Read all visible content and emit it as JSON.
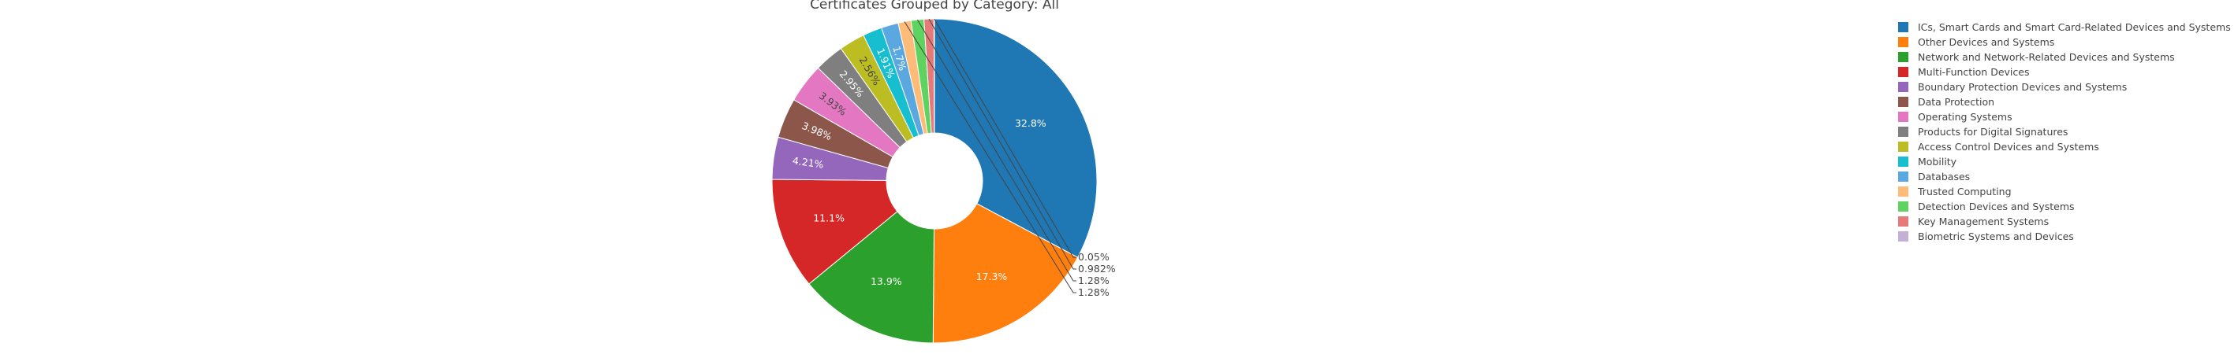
{
  "chart_data": {
    "type": "pie",
    "title": "Certificates Grouped by Category: All",
    "hole": true,
    "legend_position": "right",
    "slices": [
      {
        "name": "ICs, Smart Cards and Smart Card-Related Devices and Systems",
        "value": 32.8,
        "label": "32.8%",
        "color": "#1f77b4"
      },
      {
        "name": "Other Devices and Systems",
        "value": 17.3,
        "label": "17.3%",
        "color": "#ff7f0e"
      },
      {
        "name": "Network and Network-Related Devices and Systems",
        "value": 13.9,
        "label": "13.9%",
        "color": "#2ca02c"
      },
      {
        "name": "Multi-Function Devices",
        "value": 11.1,
        "label": "11.1%",
        "color": "#d62728"
      },
      {
        "name": "Boundary Protection Devices and Systems",
        "value": 4.21,
        "label": "4.21%",
        "color": "#9467bd"
      },
      {
        "name": "Data Protection",
        "value": 3.98,
        "label": "3.98%",
        "color": "#8c564b"
      },
      {
        "name": "Operating Systems",
        "value": 3.93,
        "label": "3.93%",
        "color": "#e377c2"
      },
      {
        "name": "Products for Digital Signatures",
        "value": 2.95,
        "label": "2.95%",
        "color": "#7f7f7f"
      },
      {
        "name": "Access Control Devices and Systems",
        "value": 2.56,
        "label": "2.56%",
        "color": "#bcbd22"
      },
      {
        "name": "Mobility",
        "value": 1.91,
        "label": "1.91%",
        "color": "#17becf"
      },
      {
        "name": "Databases",
        "value": 1.7,
        "label": "1.7%",
        "color": "#5ba8e0"
      },
      {
        "name": "Trusted Computing",
        "value": 1.28,
        "label": "1.28%",
        "color": "#ffbb78"
      },
      {
        "name": "Detection Devices and Systems",
        "value": 1.28,
        "label": "1.28%",
        "color": "#5fd35f"
      },
      {
        "name": "Key Management Systems",
        "value": 0.982,
        "label": "0.982%",
        "color": "#e67a7b"
      },
      {
        "name": "Biometric Systems and Devices",
        "value": 0.05,
        "label": "0.05%",
        "color": "#c5b0d5"
      }
    ]
  }
}
